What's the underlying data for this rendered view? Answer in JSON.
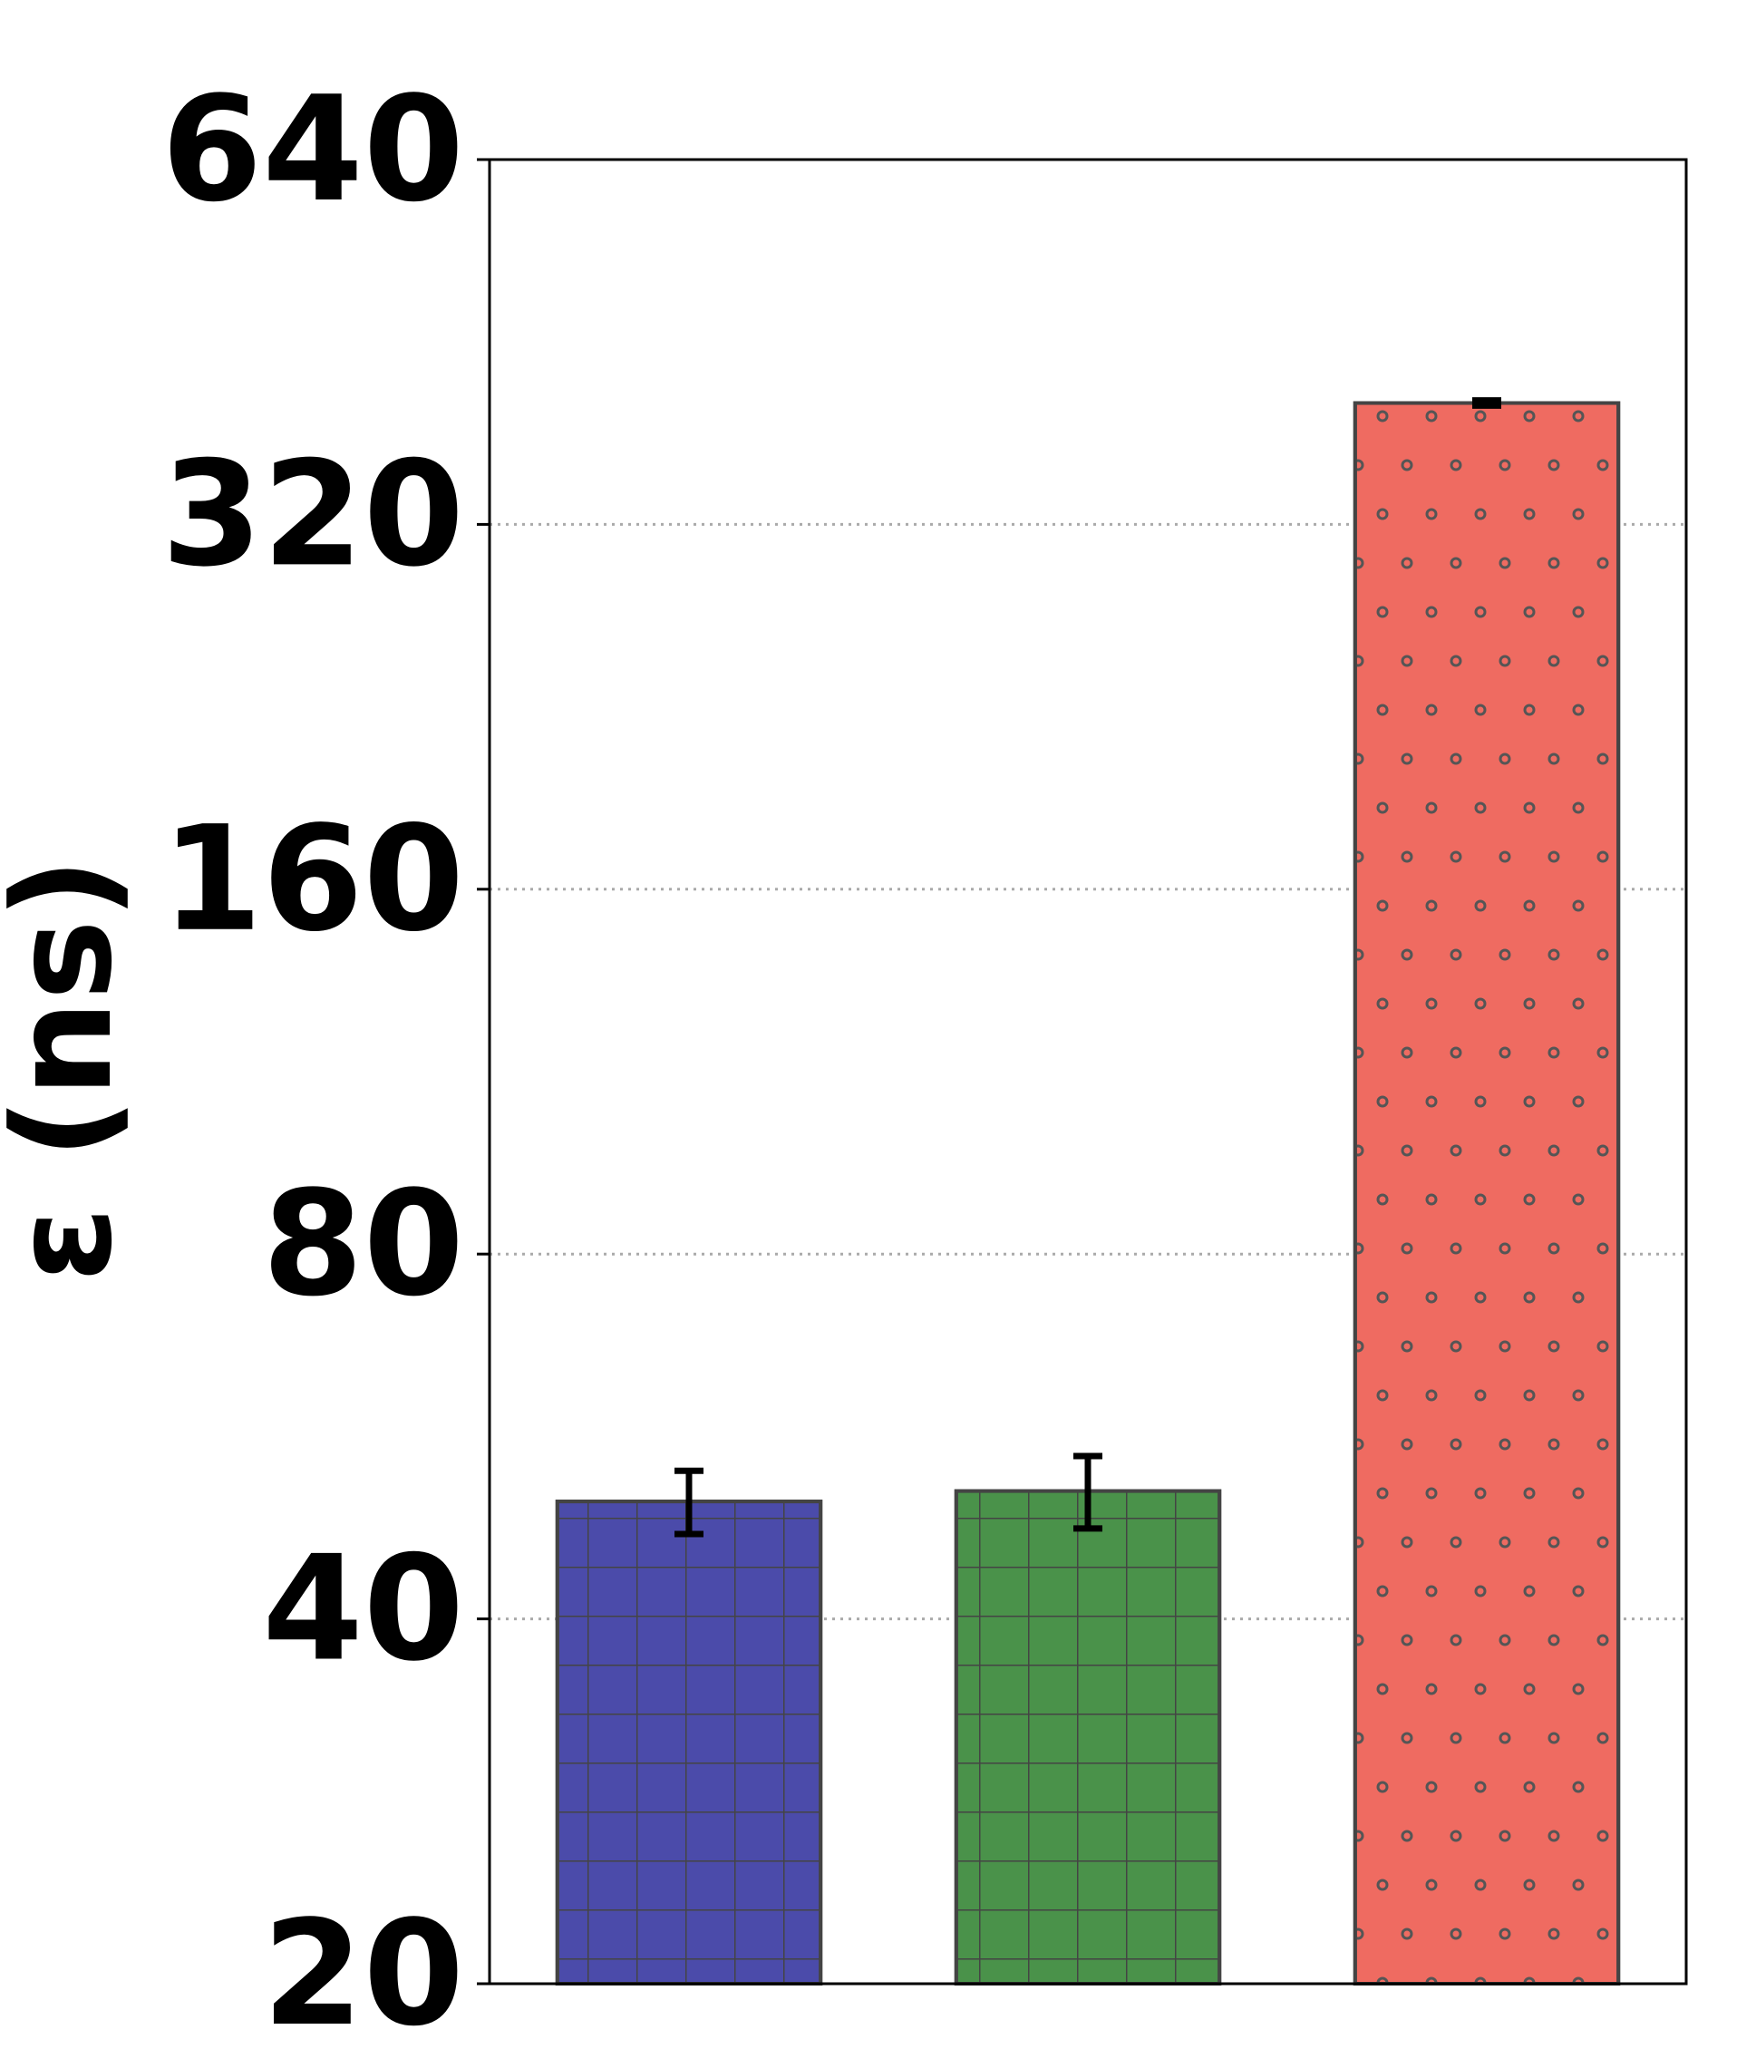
{
  "chart_data": {
    "type": "bar",
    "y_label": "ε (ns)",
    "categories": [
      null,
      null,
      null
    ],
    "values": [
      50,
      51,
      403
    ],
    "errors": [
      3,
      3.5,
      2
    ],
    "colors": [
      "#4b4baa",
      "#4a924a",
      "#ef6b61"
    ],
    "hatches": [
      "grid",
      "grid",
      "circles"
    ],
    "log_base": 2,
    "ylim": [
      20,
      640
    ],
    "yticks": [
      20,
      40,
      80,
      160,
      320,
      640
    ],
    "grid": true
  }
}
